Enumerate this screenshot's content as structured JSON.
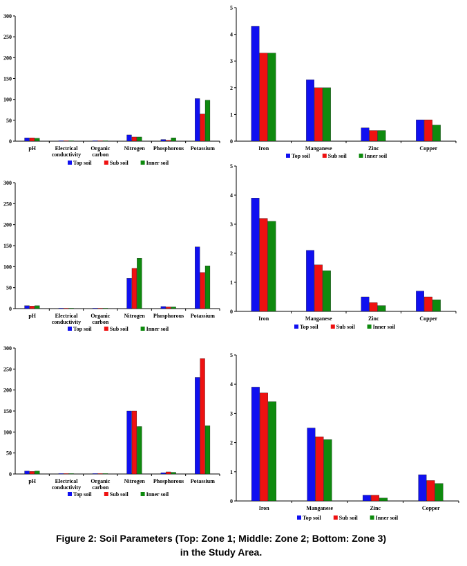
{
  "colors": {
    "top": "#1010f0",
    "sub": "#ee1111",
    "inner": "#0e8a0e"
  },
  "legend_labels": [
    "Top soil",
    "Sub soil",
    "Inner soil"
  ],
  "caption": {
    "line1": "Figure 2: Soil Parameters (Top: Zone 1; Middle: Zone 2; Bottom: Zone 3)",
    "line2": "in the Study Area."
  },
  "chart_data": [
    {
      "id": "zone1-general",
      "type": "bar",
      "categories": [
        [
          "pH"
        ],
        [
          "Electrical",
          "conductivity"
        ],
        [
          "Organic",
          "carbon"
        ],
        [
          "Nitrogen"
        ],
        [
          "Phosphorous"
        ],
        [
          "Potassium"
        ]
      ],
      "series": [
        {
          "name": "Top soil",
          "values": [
            8,
            1,
            1,
            15,
            4,
            102
          ]
        },
        {
          "name": "Sub soil",
          "values": [
            8,
            1,
            1,
            10,
            2,
            65
          ]
        },
        {
          "name": "Inner soil",
          "values": [
            7,
            1,
            1,
            10,
            8,
            98
          ]
        }
      ],
      "ylim": [
        0,
        300
      ],
      "yticks": [
        0,
        50,
        100,
        150,
        200,
        250,
        300
      ],
      "legend_position": "bottom"
    },
    {
      "id": "zone1-micro",
      "type": "bar",
      "categories": [
        [
          "Iron"
        ],
        [
          "Manganese"
        ],
        [
          "Zinc"
        ],
        [
          "Copper"
        ]
      ],
      "series": [
        {
          "name": "Top soil",
          "values": [
            4.3,
            2.3,
            0.5,
            0.8
          ]
        },
        {
          "name": "Sub soil",
          "values": [
            3.3,
            2.0,
            0.4,
            0.8
          ]
        },
        {
          "name": "Inner soil",
          "values": [
            3.3,
            2.0,
            0.4,
            0.6
          ]
        }
      ],
      "ylim": [
        0,
        5
      ],
      "yticks": [
        0,
        1,
        2,
        3,
        4,
        5
      ],
      "legend_position": "bottom"
    },
    {
      "id": "zone2-general",
      "type": "bar",
      "categories": [
        [
          "pH"
        ],
        [
          "Electrical",
          "conductivity"
        ],
        [
          "Organic",
          "carbon"
        ],
        [
          "Nitrogen"
        ],
        [
          "Phosphorous"
        ],
        [
          "Potassium"
        ]
      ],
      "series": [
        {
          "name": "Top soil",
          "values": [
            7,
            1,
            1,
            72,
            5,
            147
          ]
        },
        {
          "name": "Sub soil",
          "values": [
            6,
            1,
            1,
            96,
            4,
            86
          ]
        },
        {
          "name": "Inner soil",
          "values": [
            7,
            1,
            1,
            120,
            4,
            102
          ]
        }
      ],
      "ylim": [
        0,
        300
      ],
      "yticks": [
        0,
        50,
        100,
        150,
        200,
        250,
        300
      ],
      "legend_position": "bottom"
    },
    {
      "id": "zone2-micro",
      "type": "bar",
      "categories": [
        [
          "Iron"
        ],
        [
          "Manganese"
        ],
        [
          "Zinc"
        ],
        [
          "Copper"
        ]
      ],
      "series": [
        {
          "name": "Top soil",
          "values": [
            3.9,
            2.1,
            0.5,
            0.7
          ]
        },
        {
          "name": "Sub soil",
          "values": [
            3.2,
            1.6,
            0.3,
            0.5
          ]
        },
        {
          "name": "Inner soil",
          "values": [
            3.1,
            1.4,
            0.2,
            0.4
          ]
        }
      ],
      "ylim": [
        0,
        5
      ],
      "yticks": [
        0,
        1,
        2,
        3,
        4,
        5
      ],
      "legend_position": "bottom"
    },
    {
      "id": "zone3-general",
      "type": "bar",
      "categories": [
        [
          "pH"
        ],
        [
          "Electrical",
          "conductivity"
        ],
        [
          "Organic",
          "carbon"
        ],
        [
          "Nitrogen"
        ],
        [
          "Phosphorous"
        ],
        [
          "Potassium"
        ]
      ],
      "series": [
        {
          "name": "Top soil",
          "values": [
            7,
            1,
            1,
            150,
            3,
            230
          ]
        },
        {
          "name": "Sub soil",
          "values": [
            6,
            1,
            1,
            150,
            5,
            275
          ]
        },
        {
          "name": "Inner soil",
          "values": [
            7,
            1,
            1,
            113,
            4,
            115
          ]
        }
      ],
      "ylim": [
        0,
        300
      ],
      "yticks": [
        0,
        50,
        100,
        150,
        200,
        250,
        300
      ],
      "legend_position": "bottom"
    },
    {
      "id": "zone3-micro",
      "type": "bar",
      "categories": [
        [
          "Iron"
        ],
        [
          "Manganese"
        ],
        [
          "Zinc"
        ],
        [
          "Copper"
        ]
      ],
      "series": [
        {
          "name": "Top soil",
          "values": [
            3.9,
            2.5,
            0.2,
            0.9
          ]
        },
        {
          "name": "Sub soil",
          "values": [
            3.7,
            2.2,
            0.2,
            0.7
          ]
        },
        {
          "name": "Inner soil",
          "values": [
            3.4,
            2.1,
            0.1,
            0.6
          ]
        }
      ],
      "ylim": [
        0,
        5
      ],
      "yticks": [
        0,
        1,
        2,
        3,
        4,
        5
      ],
      "legend_position": "bottom"
    }
  ]
}
